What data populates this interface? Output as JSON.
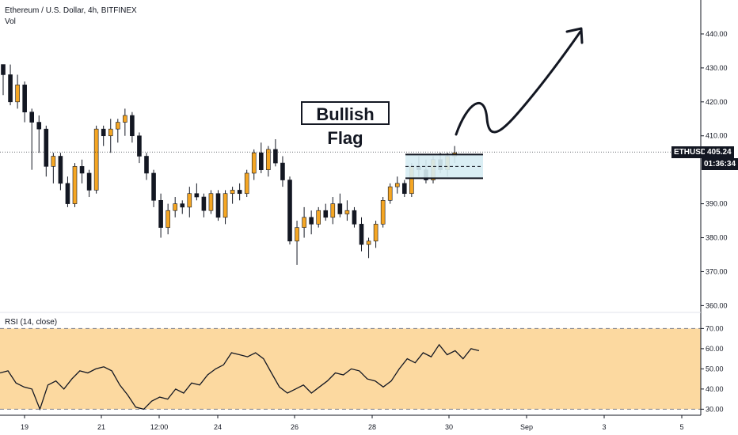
{
  "header": {
    "symbol_line": "Ethereum / U.S. Dollar, 4h, BITFINEX",
    "volume_label": "Vol"
  },
  "annotation": {
    "text": "Bullish Flag"
  },
  "price_tags": {
    "symbol": "ETHUSD",
    "last_price": "405.24",
    "countdown": "01:36:34"
  },
  "rsi": {
    "label": "RSI (14, close)",
    "upper_band": 70,
    "lower_band": 30,
    "y_ticks": [
      "70.00",
      "60.00",
      "50.00",
      "40.00",
      "30.00"
    ]
  },
  "colors": {
    "up": "#f5a623",
    "down": "#131722",
    "rsi_fill": "#fcd9a0",
    "flag_fill": "#d6ecf3"
  },
  "chart_data": {
    "type": "candlestick",
    "title": "Ethereum / U.S. Dollar, 4h, BITFINEX",
    "price_axis": [
      "440.00",
      "430.00",
      "420.00",
      "410.00",
      "390.00",
      "380.00",
      "370.00",
      "360.00"
    ],
    "ylim": [
      358,
      450
    ],
    "x_ticks": [
      "19",
      "21",
      "12:00",
      "24",
      "26",
      "28",
      "30",
      "Sep",
      "3",
      "5"
    ],
    "last_price": 405.24,
    "candles": [
      [
        431,
        431,
        422,
        428
      ],
      [
        428,
        431,
        419,
        420
      ],
      [
        420,
        428,
        418,
        425
      ],
      [
        425,
        426,
        414,
        417
      ],
      [
        417,
        418,
        400,
        414
      ],
      [
        414,
        416,
        405,
        412
      ],
      [
        412,
        413,
        398,
        401
      ],
      [
        401,
        405,
        396,
        404
      ],
      [
        404,
        405,
        394,
        396
      ],
      [
        396,
        398,
        389,
        390
      ],
      [
        390,
        402,
        389,
        401
      ],
      [
        401,
        403,
        396,
        399
      ],
      [
        399,
        400,
        392,
        394
      ],
      [
        394,
        413,
        393,
        412
      ],
      [
        412,
        413,
        407,
        410
      ],
      [
        410,
        415,
        405,
        412
      ],
      [
        412,
        415,
        408,
        414
      ],
      [
        414,
        418,
        410,
        416
      ],
      [
        416,
        417,
        408,
        410
      ],
      [
        410,
        411,
        402,
        404
      ],
      [
        404,
        405,
        397,
        399
      ],
      [
        399,
        400,
        389,
        391
      ],
      [
        391,
        393,
        380,
        383
      ],
      [
        383,
        390,
        381,
        388
      ],
      [
        388,
        392,
        386,
        390
      ],
      [
        390,
        391,
        387,
        389
      ],
      [
        389,
        395,
        386,
        393
      ],
      [
        393,
        396,
        391,
        392
      ],
      [
        392,
        393,
        386,
        388
      ],
      [
        388,
        394,
        387,
        393
      ],
      [
        393,
        394,
        385,
        386
      ],
      [
        386,
        394,
        384,
        393
      ],
      [
        393,
        395,
        390,
        394
      ],
      [
        394,
        396,
        391,
        393
      ],
      [
        393,
        400,
        392,
        399
      ],
      [
        399,
        406,
        397,
        405
      ],
      [
        405,
        408,
        399,
        400
      ],
      [
        400,
        407,
        398,
        406
      ],
      [
        406,
        409,
        401,
        402
      ],
      [
        402,
        404,
        395,
        397
      ],
      [
        397,
        398,
        378,
        379
      ],
      [
        379,
        385,
        372,
        383
      ],
      [
        383,
        389,
        380,
        386
      ],
      [
        386,
        388,
        381,
        384
      ],
      [
        384,
        389,
        383,
        388
      ],
      [
        388,
        390,
        385,
        386
      ],
      [
        386,
        392,
        384,
        390
      ],
      [
        390,
        393,
        386,
        387
      ],
      [
        387,
        391,
        385,
        388
      ],
      [
        388,
        389,
        383,
        384
      ],
      [
        384,
        386,
        376,
        378
      ],
      [
        378,
        380,
        374,
        379
      ],
      [
        379,
        385,
        377,
        384
      ],
      [
        384,
        392,
        383,
        391
      ],
      [
        391,
        396,
        390,
        395
      ],
      [
        395,
        398,
        393,
        396
      ],
      [
        396,
        397,
        392,
        393
      ],
      [
        393,
        402,
        392,
        401
      ],
      [
        401,
        404,
        398,
        400
      ],
      [
        400,
        403,
        396,
        397
      ],
      [
        397,
        404,
        396,
        403
      ],
      [
        403,
        405,
        399,
        400
      ],
      [
        400,
        405,
        398,
        404
      ],
      [
        404,
        407,
        402,
        405
      ]
    ],
    "rsi_values": [
      48,
      49,
      43,
      41,
      40,
      30,
      42,
      44,
      40,
      45,
      49,
      48,
      50,
      51,
      49,
      42,
      37,
      31,
      30,
      34,
      36,
      35,
      40,
      38,
      43,
      42,
      47,
      50,
      52,
      58,
      57,
      56,
      58,
      55,
      48,
      41,
      38,
      40,
      42,
      38,
      41,
      44,
      48,
      47,
      50,
      49,
      45,
      44,
      41,
      44,
      50,
      55,
      53,
      58,
      56,
      62,
      57,
      59,
      55,
      60,
      59
    ]
  }
}
